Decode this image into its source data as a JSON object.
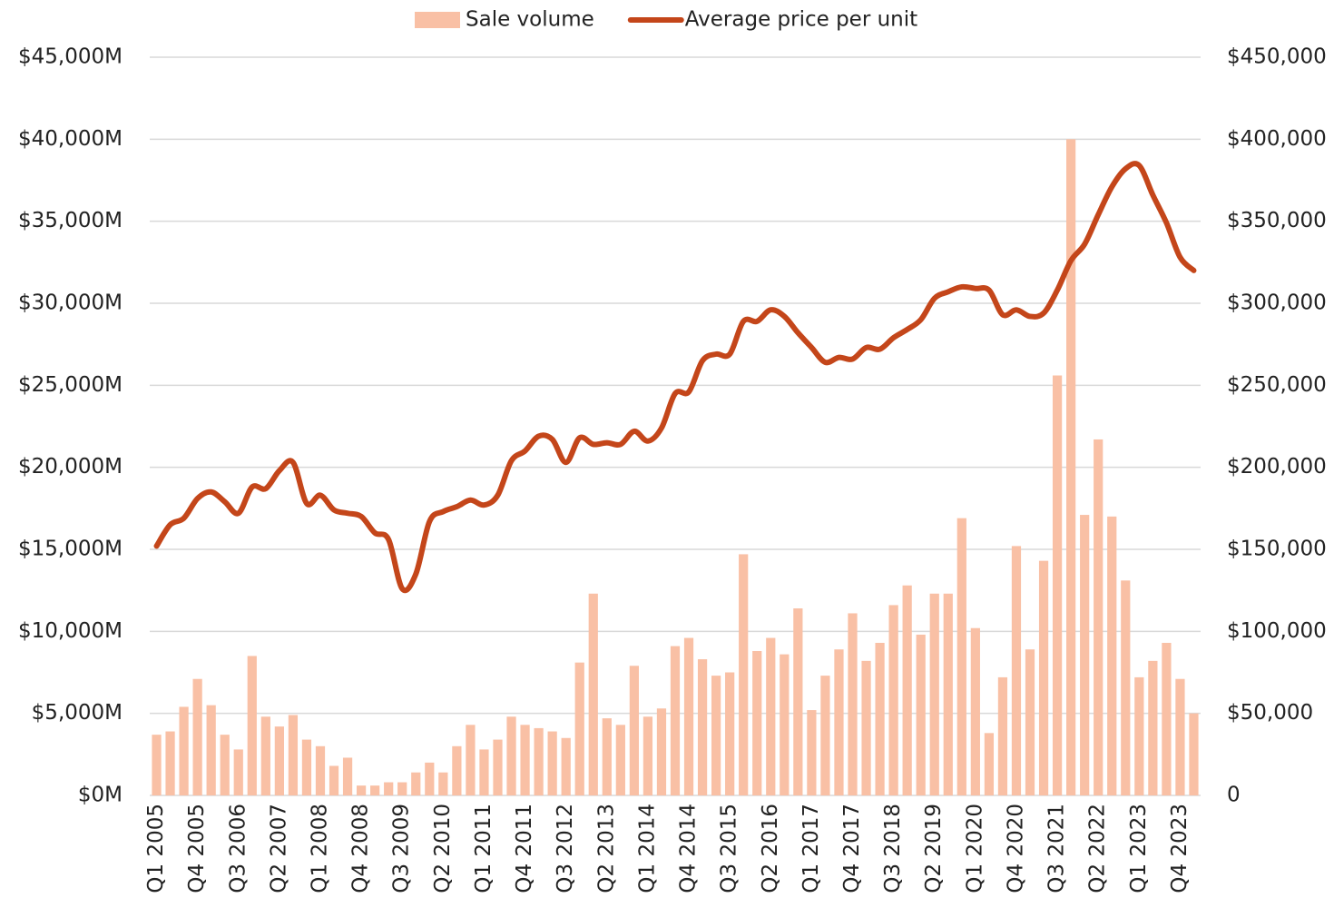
{
  "chart_data": {
    "type": "bar-line",
    "categories": [
      "Q1 2005",
      null,
      null,
      "Q4 2005",
      null,
      null,
      "Q3 2006",
      null,
      null,
      "Q2 2007",
      null,
      null,
      "Q1 2008",
      null,
      null,
      "Q4 2008",
      null,
      null,
      "Q3 2009",
      null,
      null,
      "Q2 2010",
      null,
      null,
      "Q1 2011",
      null,
      null,
      "Q4 2011",
      null,
      null,
      "Q3 2012",
      null,
      null,
      "Q2 2013",
      null,
      null,
      "Q1 2014",
      null,
      null,
      "Q4 2014",
      null,
      null,
      "Q3 2015",
      null,
      null,
      "Q2 2016",
      null,
      null,
      "Q1 2017",
      null,
      null,
      "Q4 2017",
      null,
      null,
      "Q3 2018",
      null,
      null,
      "Q2 2019",
      null,
      null,
      "Q1 2020",
      null,
      null,
      "Q4 2020",
      null,
      null,
      "Q3 2021",
      null,
      null,
      "Q2 2022",
      null,
      null,
      "Q1 2023",
      null,
      null,
      "Q4 2023",
      null
    ],
    "series": [
      {
        "name": "Sale volume",
        "type": "bar",
        "color": "#f9c0a5",
        "values": [
          3700,
          3900,
          5400,
          7100,
          5500,
          3700,
          2800,
          8500,
          4800,
          4200,
          4900,
          3400,
          3000,
          1800,
          2300,
          600,
          600,
          800,
          800,
          1400,
          2000,
          1400,
          3000,
          4300,
          2800,
          3400,
          4800,
          4300,
          4100,
          3900,
          3500,
          8100,
          12300,
          4700,
          4300,
          7900,
          4800,
          5300,
          9100,
          9600,
          8300,
          7300,
          7500,
          14700,
          8800,
          9600,
          8600,
          11400,
          5200,
          7300,
          8900,
          11100,
          8200,
          9300,
          11600,
          12800,
          9800,
          12300,
          12300,
          16900,
          10200,
          3800,
          7200,
          15200,
          8900,
          14300,
          25600,
          40000,
          17100,
          21700,
          17000,
          13100,
          7200,
          8200,
          9300,
          7100,
          5000
        ]
      },
      {
        "name": "Average price per unit",
        "type": "line",
        "axis": "y2",
        "color": "#c4461a",
        "values": [
          152000,
          165000,
          169000,
          181000,
          185000,
          179000,
          172000,
          188000,
          187000,
          198000,
          203000,
          178000,
          183000,
          174000,
          172000,
          170000,
          160000,
          156000,
          126000,
          135000,
          167000,
          173000,
          176000,
          180000,
          177000,
          183000,
          204000,
          210000,
          219000,
          217000,
          203000,
          218000,
          214000,
          215000,
          214000,
          222000,
          216000,
          224000,
          245000,
          246000,
          265000,
          269000,
          269000,
          289000,
          289000,
          296000,
          292000,
          282000,
          273000,
          264000,
          267000,
          266000,
          273000,
          272000,
          279000,
          284000,
          290000,
          303000,
          307000,
          310000,
          309000,
          308000,
          293000,
          296000,
          292000,
          294000,
          308000,
          326000,
          336000,
          354000,
          371000,
          382000,
          384000,
          366000,
          349000,
          328000,
          320000
        ]
      }
    ],
    "ylim": [
      0,
      45000
    ],
    "yticks": [
      {
        "value": 0,
        "label": "$0M"
      },
      {
        "value": 5000,
        "label": "$5,000M"
      },
      {
        "value": 10000,
        "label": "$10,000M"
      },
      {
        "value": 15000,
        "label": "$15,000M"
      },
      {
        "value": 20000,
        "label": "$20,000M"
      },
      {
        "value": 25000,
        "label": "$25,000M"
      },
      {
        "value": 30000,
        "label": "$30,000M"
      },
      {
        "value": 35000,
        "label": "$35,000M"
      },
      {
        "value": 40000,
        "label": "$40,000M"
      },
      {
        "value": 45000,
        "label": "$45,000M"
      }
    ],
    "y2lim": [
      0,
      450000
    ],
    "y2ticks": [
      0,
      {
        "value": 50000,
        "label": "$50,000"
      },
      {
        "value": 100000,
        "label": "$100,000"
      },
      {
        "value": 150000,
        "label": "$150,000"
      },
      {
        "value": 200000,
        "label": "$200,000"
      },
      {
        "value": 250000,
        "label": "$250,000"
      },
      {
        "value": 300000,
        "label": "$300,000"
      },
      {
        "value": 350000,
        "label": "$350,000"
      },
      {
        "value": 400000,
        "label": "$400,000"
      },
      {
        "value": 450000,
        "label": "$450,000"
      }
    ],
    "grid": true,
    "legend": "top"
  }
}
